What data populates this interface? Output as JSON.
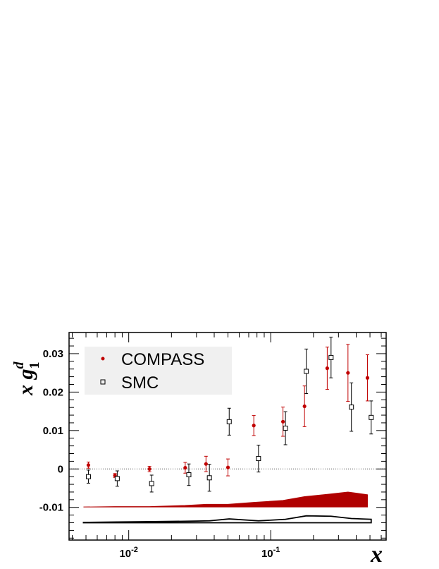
{
  "chart_data": {
    "type": "scatter",
    "xlabel_main": "x",
    "xlabel_sub": "",
    "ylabel_main": "x g",
    "ylabel_sub": "1",
    "ylabel_sup": "d",
    "x_scale": "log",
    "xlim": [
      0.0038,
      0.65
    ],
    "ylim": [
      -0.0185,
      0.0355
    ],
    "x_ticks": [
      {
        "value": 0.01,
        "base": "10",
        "exp": "-2"
      },
      {
        "value": 0.1,
        "base": "10",
        "exp": "-1"
      }
    ],
    "y_ticks": [
      {
        "value": -0.01,
        "label": "-0.01"
      },
      {
        "value": 0,
        "label": "0"
      },
      {
        "value": 0.01,
        "label": "0.01"
      },
      {
        "value": 0.02,
        "label": "0.02"
      },
      {
        "value": 0.03,
        "label": "0.03"
      }
    ],
    "zero_line": true,
    "legend": {
      "placement": "top-left",
      "background": "#f0f0f0"
    },
    "series": [
      {
        "name": "COMPASS",
        "marker": "filled-circle",
        "color": "#c00000",
        "points": [
          {
            "x": 0.0052,
            "y": 0.001,
            "err": 0.0008
          },
          {
            "x": 0.008,
            "y": -0.0017,
            "err": 0.0005
          },
          {
            "x": 0.014,
            "y": 0.0,
            "err": 0.0007
          },
          {
            "x": 0.025,
            "y": 0.0003,
            "err": 0.0014
          },
          {
            "x": 0.035,
            "y": 0.0013,
            "err": 0.002
          },
          {
            "x": 0.05,
            "y": 0.0004,
            "err": 0.0022
          },
          {
            "x": 0.076,
            "y": 0.0113,
            "err": 0.0026
          },
          {
            "x": 0.122,
            "y": 0.0123,
            "err": 0.0038
          },
          {
            "x": 0.173,
            "y": 0.0163,
            "err": 0.0053
          },
          {
            "x": 0.25,
            "y": 0.0262,
            "err": 0.0055
          },
          {
            "x": 0.35,
            "y": 0.025,
            "err": 0.0074
          },
          {
            "x": 0.48,
            "y": 0.0237,
            "err": 0.006
          }
        ]
      },
      {
        "name": "SMC",
        "marker": "open-square",
        "color": "#000000",
        "points": [
          {
            "x": 0.0052,
            "y": -0.002,
            "err": 0.0017
          },
          {
            "x": 0.0083,
            "y": -0.0025,
            "err": 0.002
          },
          {
            "x": 0.0145,
            "y": -0.0038,
            "err": 0.0022
          },
          {
            "x": 0.0265,
            "y": -0.0015,
            "err": 0.0028
          },
          {
            "x": 0.037,
            "y": -0.0023,
            "err": 0.0035
          },
          {
            "x": 0.051,
            "y": 0.0123,
            "err": 0.0035
          },
          {
            "x": 0.082,
            "y": 0.0027,
            "err": 0.0035
          },
          {
            "x": 0.127,
            "y": 0.0106,
            "err": 0.0043
          },
          {
            "x": 0.178,
            "y": 0.0254,
            "err": 0.0058
          },
          {
            "x": 0.266,
            "y": 0.029,
            "err": 0.0053
          },
          {
            "x": 0.37,
            "y": 0.0161,
            "err": 0.0063
          },
          {
            "x": 0.51,
            "y": 0.0134,
            "err": 0.0043
          }
        ]
      }
    ],
    "systematic_bands": [
      {
        "name": "COMPASS systematic",
        "color": "#b00000",
        "base": -0.0099,
        "filled": true,
        "x": [
          0.0048,
          0.008,
          0.014,
          0.025,
          0.035,
          0.05,
          0.076,
          0.122,
          0.173,
          0.25,
          0.35,
          0.48
        ],
        "upper": [
          -0.0099,
          -0.0098,
          -0.0098,
          -0.0095,
          -0.0092,
          -0.0092,
          -0.0087,
          -0.0082,
          -0.0072,
          -0.0066,
          -0.006,
          -0.0067
        ]
      },
      {
        "name": "SMC systematic",
        "color": "#000000",
        "base": -0.014,
        "filled": false,
        "x": [
          0.0048,
          0.0083,
          0.0145,
          0.0265,
          0.037,
          0.051,
          0.082,
          0.127,
          0.178,
          0.266,
          0.37,
          0.51
        ],
        "upper": [
          -0.0139,
          -0.0138,
          -0.0137,
          -0.0136,
          -0.0135,
          -0.013,
          -0.0135,
          -0.0131,
          -0.0122,
          -0.0123,
          -0.0129,
          -0.0131
        ]
      }
    ]
  }
}
